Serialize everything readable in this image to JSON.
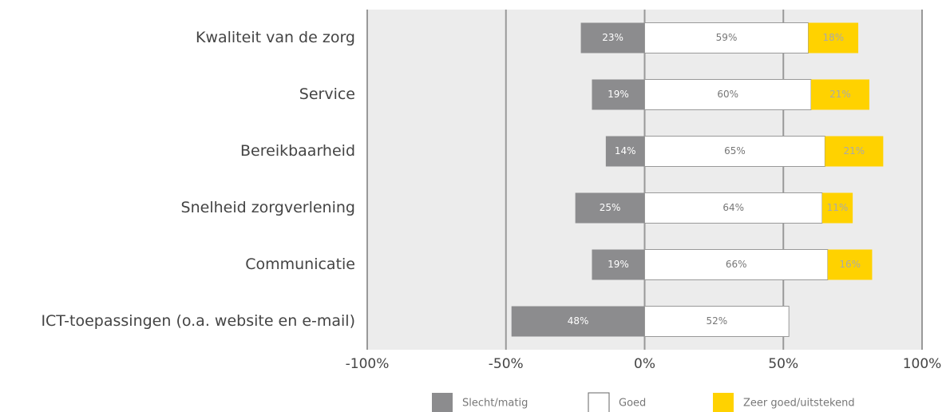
{
  "chart_data": {
    "type": "diverging-bar",
    "categories": [
      "Kwaliteit van de zorg",
      "Service",
      "Bereikbaarheid",
      "Snelheid zorgverlening",
      "Communicatie",
      "ICT-toepassingen (o.a. website en e-mail)"
    ],
    "series": [
      {
        "name": "Slecht/matig",
        "color": "#8c8c8e",
        "direction": "left",
        "values": [
          23,
          19,
          14,
          25,
          19,
          48
        ],
        "value_labels": [
          "23%",
          "19%",
          "14%",
          "25%",
          "19%",
          "48%"
        ]
      },
      {
        "name": "Goed",
        "color": "#ffffff",
        "direction": "right",
        "values": [
          59,
          60,
          65,
          64,
          66,
          52
        ],
        "value_labels": [
          "59%",
          "60%",
          "65%",
          "64%",
          "66%",
          "52%"
        ]
      },
      {
        "name": "Zeer goed/uitstekend",
        "color": "#ffd200",
        "direction": "right",
        "values": [
          18,
          21,
          21,
          11,
          16,
          null
        ],
        "value_labels": [
          "18%",
          "21%",
          "21%",
          "11%",
          "16%",
          null
        ]
      }
    ],
    "xlim": [
      -100,
      100
    ],
    "xticks": [
      {
        "value": -100,
        "label": "-100%"
      },
      {
        "value": -50,
        "label": "-50%"
      },
      {
        "value": 0,
        "label": "0%"
      },
      {
        "value": 50,
        "label": "50%"
      },
      {
        "value": 100,
        "label": "100%"
      }
    ],
    "grid": true
  }
}
